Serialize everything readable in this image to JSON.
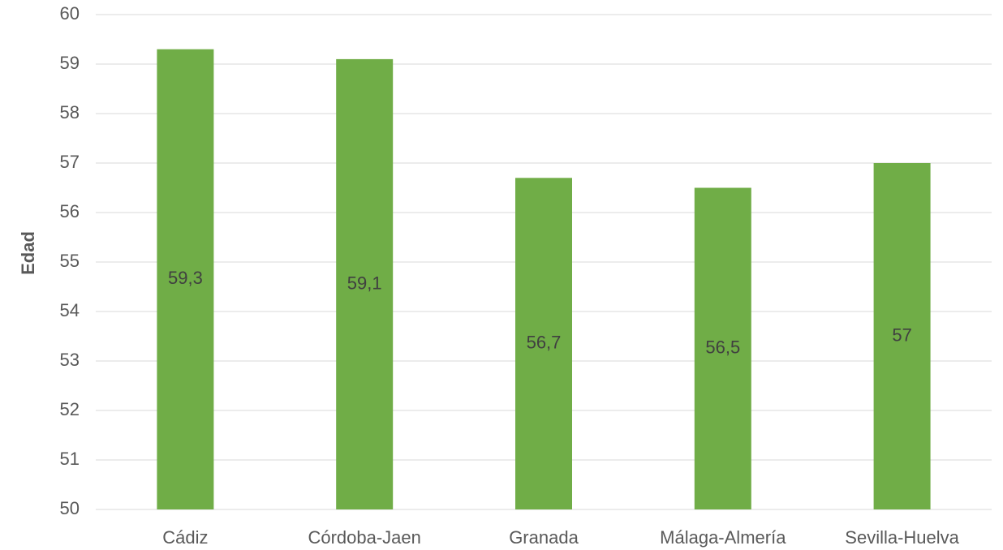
{
  "chart_data": {
    "type": "bar",
    "y_label": "Edad",
    "categories": [
      "Cádiz",
      "Córdoba-Jaen",
      "Granada",
      "Málaga-Almería",
      "Sevilla-Huelva"
    ],
    "values": [
      59.3,
      59.1,
      56.7,
      56.5,
      57
    ],
    "value_labels": [
      "59,3",
      "59,1",
      "56,7",
      "56,5",
      "57"
    ],
    "color": "#70ad47",
    "ylim": [
      50,
      60
    ],
    "yticks": [
      50,
      51,
      52,
      53,
      54,
      55,
      56,
      57,
      58,
      59,
      60
    ],
    "grid": true
  }
}
